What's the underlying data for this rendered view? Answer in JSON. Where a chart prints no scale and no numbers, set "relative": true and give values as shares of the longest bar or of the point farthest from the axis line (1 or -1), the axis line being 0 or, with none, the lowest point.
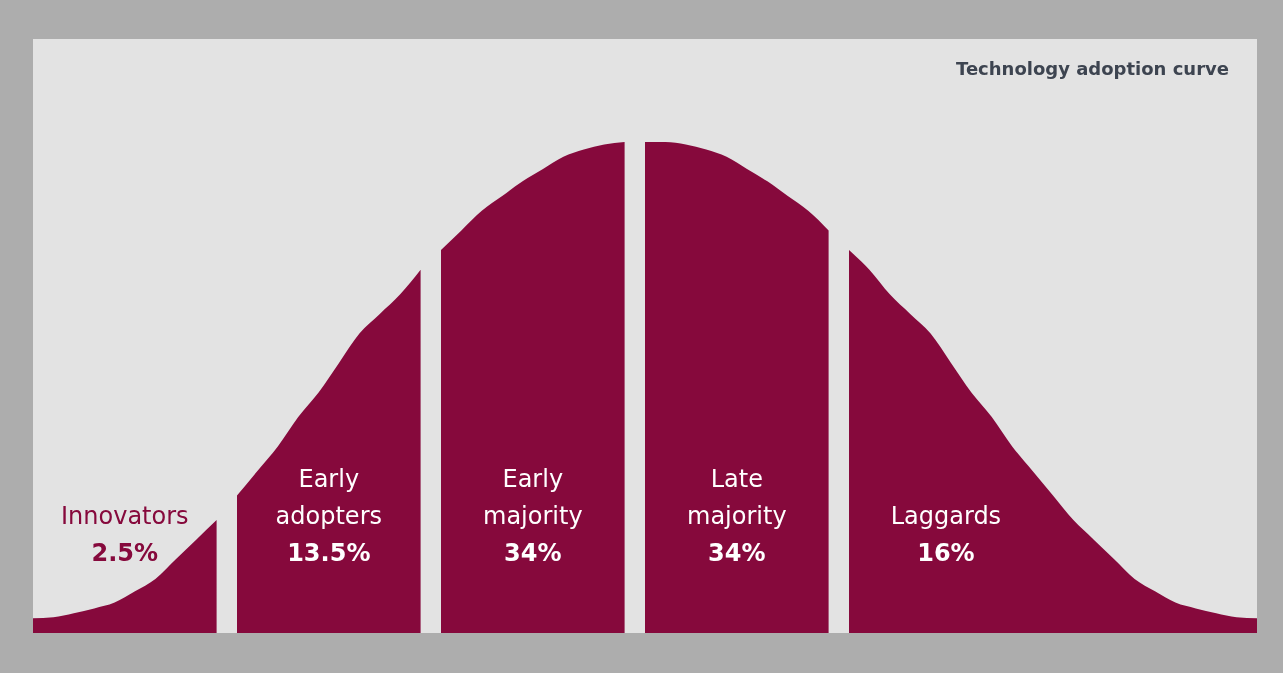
{
  "chart_data": {
    "type": "area",
    "relative": true,
    "title": "Technology adoption curve",
    "categories": [
      null,
      null,
      null,
      null,
      null,
      null,
      null,
      null,
      null,
      null,
      null,
      null,
      null,
      null,
      null,
      null,
      null,
      null,
      null,
      null,
      null,
      null,
      null,
      null,
      null,
      null,
      null,
      null,
      null,
      null,
      null,
      null,
      null,
      null,
      null,
      null,
      null,
      null,
      null,
      null,
      null,
      null,
      null,
      null,
      null,
      null,
      null,
      null,
      null,
      null,
      null,
      null,
      null,
      null,
      null,
      null,
      null,
      null,
      null,
      null,
      null
    ],
    "series": [
      {
        "name": "Innovators",
        "color": "#86093c",
        "values": [
          0.03,
          0.032,
          0.04,
          0.05,
          0.062,
          0.085,
          0.11,
          0.15,
          0.19,
          0.23,
          null,
          null,
          null,
          null,
          null,
          null,
          null,
          null,
          null,
          null,
          null,
          null,
          null,
          null,
          null,
          null,
          null,
          null,
          null,
          null,
          null,
          null,
          null,
          null,
          null,
          null,
          null,
          null,
          null,
          null,
          null,
          null,
          null,
          null,
          null,
          null,
          null,
          null,
          null,
          null,
          null,
          null,
          null,
          null,
          null,
          null,
          null,
          null,
          null,
          null,
          null
        ]
      },
      {
        "name": "Early adopters",
        "color": "#86093c",
        "values": [
          null,
          null,
          null,
          null,
          null,
          null,
          null,
          null,
          null,
          null,
          0.28,
          0.33,
          0.38,
          0.44,
          0.49,
          0.55,
          0.61,
          0.65,
          0.69,
          0.74,
          null,
          null,
          null,
          null,
          null,
          null,
          null,
          null,
          null,
          null,
          null,
          null,
          null,
          null,
          null,
          null,
          null,
          null,
          null,
          null,
          null,
          null,
          null,
          null,
          null,
          null,
          null,
          null,
          null,
          null,
          null,
          null,
          null,
          null,
          null,
          null,
          null,
          null,
          null,
          null,
          null
        ]
      },
      {
        "name": "Early majority",
        "color": "#86093c",
        "values": [
          null,
          null,
          null,
          null,
          null,
          null,
          null,
          null,
          null,
          null,
          null,
          null,
          null,
          null,
          null,
          null,
          null,
          null,
          null,
          null,
          0.78,
          0.82,
          0.86,
          0.89,
          0.92,
          0.945,
          0.97,
          0.985,
          0.995,
          1.0,
          null,
          null,
          null,
          null,
          null,
          null,
          null,
          null,
          null,
          null,
          null,
          null,
          null,
          null,
          null,
          null,
          null,
          null,
          null,
          null,
          null,
          null,
          null,
          null,
          null,
          null,
          null,
          null,
          null,
          null,
          null
        ]
      },
      {
        "name": "Late majority",
        "color": "#86093c",
        "values": [
          null,
          null,
          null,
          null,
          null,
          null,
          null,
          null,
          null,
          null,
          null,
          null,
          null,
          null,
          null,
          null,
          null,
          null,
          null,
          null,
          null,
          null,
          null,
          null,
          null,
          null,
          null,
          null,
          null,
          null,
          1.0,
          1.0,
          0.995,
          0.985,
          0.97,
          0.945,
          0.92,
          0.89,
          0.86,
          0.82,
          null,
          null,
          null,
          null,
          null,
          null,
          null,
          null,
          null,
          null,
          null,
          null,
          null,
          null,
          null,
          null,
          null,
          null,
          null,
          null,
          null
        ]
      },
      {
        "name": "Laggards",
        "color": "#86093c",
        "values": [
          null,
          null,
          null,
          null,
          null,
          null,
          null,
          null,
          null,
          null,
          null,
          null,
          null,
          null,
          null,
          null,
          null,
          null,
          null,
          null,
          null,
          null,
          null,
          null,
          null,
          null,
          null,
          null,
          null,
          null,
          null,
          null,
          null,
          null,
          null,
          null,
          null,
          null,
          null,
          null,
          0.78,
          0.74,
          0.69,
          0.65,
          0.61,
          0.55,
          0.49,
          0.44,
          0.38,
          0.33,
          0.28,
          0.23,
          0.19,
          0.15,
          0.11,
          0.085,
          0.062,
          0.05,
          0.04,
          0.032,
          0.03
        ]
      }
    ],
    "annotations": [
      "2.5%",
      "13.5%",
      "34%",
      "34%",
      "16%"
    ]
  }
}
